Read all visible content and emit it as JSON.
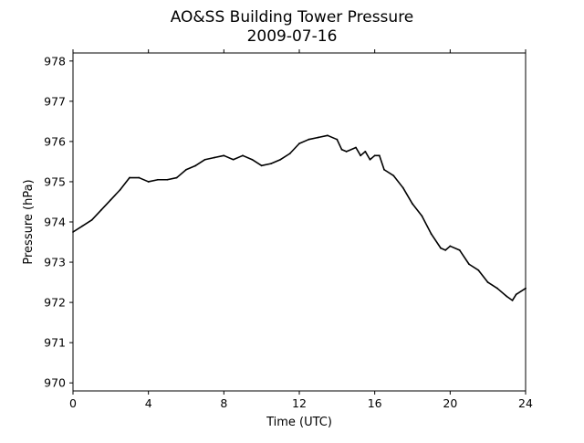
{
  "chart_data": {
    "type": "line",
    "title": "AO&SS Building Tower Pressure",
    "subtitle": "2009-07-16",
    "xlabel": "Time (UTC)",
    "ylabel": "Pressure (hPa)",
    "xlim": [
      0,
      24
    ],
    "ylim": [
      969.8,
      978.2
    ],
    "xticks": [
      0,
      4,
      8,
      12,
      16,
      20,
      24
    ],
    "yticks": [
      970,
      971,
      972,
      973,
      974,
      975,
      976,
      977,
      978
    ],
    "grid": false,
    "legend": "none",
    "line_color": "#000000",
    "series": [
      {
        "x": [
          0,
          0.5,
          1,
          1.5,
          2,
          2.5,
          3,
          3.5,
          4,
          4.5,
          5,
          5.5,
          6,
          6.5,
          7,
          7.5,
          8,
          8.5,
          9,
          9.5,
          10,
          10.5,
          11,
          11.5,
          12,
          12.5,
          13,
          13.5,
          14,
          14.25,
          14.5,
          15,
          15.25,
          15.5,
          15.75,
          16,
          16.25,
          16.5,
          17,
          17.5,
          18,
          18.5,
          19,
          19.5,
          19.75,
          20,
          20.5,
          21,
          21.5,
          22,
          22.5,
          23,
          23.3,
          23.5,
          24
        ],
        "y": [
          973.75,
          973.9,
          974.05,
          974.3,
          974.55,
          974.8,
          975.1,
          975.1,
          975.0,
          975.05,
          975.05,
          975.1,
          975.3,
          975.4,
          975.55,
          975.6,
          975.65,
          975.55,
          975.65,
          975.55,
          975.4,
          975.45,
          975.55,
          975.7,
          975.95,
          976.05,
          976.1,
          976.15,
          976.05,
          975.8,
          975.75,
          975.85,
          975.65,
          975.75,
          975.55,
          975.65,
          975.65,
          975.3,
          975.15,
          974.85,
          974.45,
          974.15,
          973.7,
          973.35,
          973.3,
          973.4,
          973.3,
          972.95,
          972.8,
          972.5,
          972.35,
          972.15,
          972.05,
          972.2,
          972.35
        ]
      }
    ]
  }
}
